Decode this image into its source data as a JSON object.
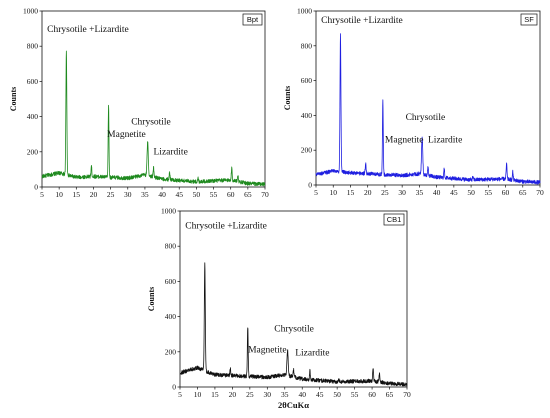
{
  "chart_data": [
    {
      "type": "line",
      "id": "bpt",
      "legend": "Bpt",
      "color": "#1f8a1f",
      "ylabel": "Counts",
      "xlabel": "",
      "xlim": [
        5,
        70
      ],
      "ylim": [
        0,
        1000
      ],
      "xticks": [
        5,
        10,
        15,
        20,
        25,
        30,
        35,
        40,
        45,
        50,
        55,
        60,
        65,
        70
      ],
      "yticks": [
        0,
        200,
        400,
        600,
        800,
        1000
      ],
      "annotations": [
        {
          "text": "Chrysotile +Lizardite",
          "x": 6.5,
          "y": 880
        },
        {
          "text": "Chrysotile",
          "x": 31,
          "y": 355
        },
        {
          "text": "Magnetite",
          "x": 24,
          "y": 285
        },
        {
          "text": "Lizardite",
          "x": 37.5,
          "y": 185
        }
      ],
      "baseline": [
        [
          5,
          60
        ],
        [
          10,
          80
        ],
        [
          15,
          55
        ],
        [
          20,
          60
        ],
        [
          25,
          55
        ],
        [
          30,
          50
        ],
        [
          35,
          70
        ],
        [
          40,
          45
        ],
        [
          50,
          30
        ],
        [
          60,
          40
        ],
        [
          65,
          20
        ],
        [
          70,
          15
        ]
      ],
      "peaks": [
        {
          "x": 12.1,
          "y": 780,
          "w": 0.35
        },
        {
          "x": 19.4,
          "y": 120,
          "w": 0.3
        },
        {
          "x": 24.4,
          "y": 465,
          "w": 0.3
        },
        {
          "x": 35.8,
          "y": 255,
          "w": 0.45
        },
        {
          "x": 37.5,
          "y": 110,
          "w": 0.3
        },
        {
          "x": 42.2,
          "y": 85,
          "w": 0.3
        },
        {
          "x": 50.5,
          "y": 50,
          "w": 0.3
        },
        {
          "x": 60.3,
          "y": 110,
          "w": 0.3
        },
        {
          "x": 62.1,
          "y": 70,
          "w": 0.3
        }
      ]
    },
    {
      "type": "line",
      "id": "sf",
      "legend": "SF",
      "color": "#1f1fe0",
      "ylabel": "Counts",
      "xlabel": "",
      "xlim": [
        5,
        70
      ],
      "ylim": [
        0,
        1000
      ],
      "xticks": [
        5,
        10,
        15,
        20,
        25,
        30,
        35,
        40,
        45,
        50,
        55,
        60,
        65,
        70
      ],
      "yticks": [
        0,
        200,
        400,
        600,
        800,
        1000
      ],
      "annotations": [
        {
          "text": "Chrysotile +Lizardite",
          "x": 6.5,
          "y": 930
        },
        {
          "text": "Chrysotile",
          "x": 31,
          "y": 375
        },
        {
          "text": "Magnetite",
          "x": 25,
          "y": 245
        },
        {
          "text": "Lizardite",
          "x": 37.5,
          "y": 245
        }
      ],
      "baseline": [
        [
          5,
          60
        ],
        [
          10,
          80
        ],
        [
          15,
          70
        ],
        [
          20,
          65
        ],
        [
          25,
          60
        ],
        [
          30,
          55
        ],
        [
          35,
          65
        ],
        [
          40,
          45
        ],
        [
          50,
          30
        ],
        [
          60,
          35
        ],
        [
          65,
          20
        ],
        [
          70,
          15
        ]
      ],
      "peaks": [
        {
          "x": 12.1,
          "y": 860,
          "w": 0.35
        },
        {
          "x": 19.4,
          "y": 125,
          "w": 0.3
        },
        {
          "x": 24.4,
          "y": 490,
          "w": 0.3
        },
        {
          "x": 35.8,
          "y": 270,
          "w": 0.45
        },
        {
          "x": 37.5,
          "y": 110,
          "w": 0.3
        },
        {
          "x": 42.2,
          "y": 95,
          "w": 0.3
        },
        {
          "x": 50.5,
          "y": 45,
          "w": 0.3
        },
        {
          "x": 60.3,
          "y": 125,
          "w": 0.3
        },
        {
          "x": 62.1,
          "y": 75,
          "w": 0.3
        }
      ]
    },
    {
      "type": "line",
      "id": "cb1",
      "legend": "CB1",
      "color": "#111111",
      "ylabel": "Counts",
      "xlabel": "2θCuKα",
      "xlim": [
        5,
        70
      ],
      "ylim": [
        0,
        1000
      ],
      "xticks": [
        5,
        10,
        15,
        20,
        25,
        30,
        35,
        40,
        45,
        50,
        55,
        60,
        65,
        70
      ],
      "yticks": [
        0,
        200,
        400,
        600,
        800,
        1000
      ],
      "annotations": [
        {
          "text": "Chrysotile +Lizardite",
          "x": 6.5,
          "y": 900
        },
        {
          "text": "Chrysotile",
          "x": 32,
          "y": 315
        },
        {
          "text": "Magnetite",
          "x": 24.5,
          "y": 195
        },
        {
          "text": "Lizardite",
          "x": 38,
          "y": 180
        }
      ],
      "baseline": [
        [
          5,
          80
        ],
        [
          10,
          110
        ],
        [
          15,
          70
        ],
        [
          20,
          65
        ],
        [
          25,
          60
        ],
        [
          30,
          55
        ],
        [
          35,
          70
        ],
        [
          40,
          45
        ],
        [
          50,
          30
        ],
        [
          60,
          35
        ],
        [
          65,
          20
        ],
        [
          70,
          15
        ]
      ],
      "peaks": [
        {
          "x": 12.1,
          "y": 700,
          "w": 0.35
        },
        {
          "x": 19.4,
          "y": 110,
          "w": 0.3
        },
        {
          "x": 24.4,
          "y": 345,
          "w": 0.3
        },
        {
          "x": 35.8,
          "y": 210,
          "w": 0.45
        },
        {
          "x": 37.5,
          "y": 100,
          "w": 0.3
        },
        {
          "x": 42.2,
          "y": 90,
          "w": 0.3
        },
        {
          "x": 50.5,
          "y": 45,
          "w": 0.3
        },
        {
          "x": 60.3,
          "y": 110,
          "w": 0.3
        },
        {
          "x": 62.1,
          "y": 75,
          "w": 0.3
        }
      ]
    }
  ]
}
